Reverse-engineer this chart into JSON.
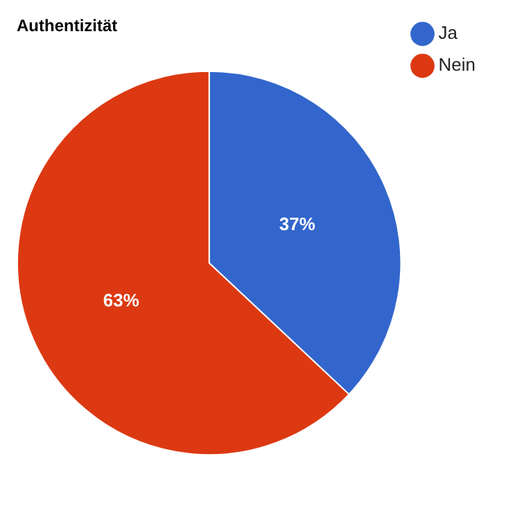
{
  "chart_data": {
    "type": "pie",
    "title": "Authentizität",
    "categories": [
      "Ja",
      "Nein"
    ],
    "values": [
      37,
      63
    ],
    "colors": [
      "#3366cc",
      "#dc3912"
    ],
    "value_labels": [
      "37%",
      "63%"
    ],
    "legend": "top right"
  }
}
